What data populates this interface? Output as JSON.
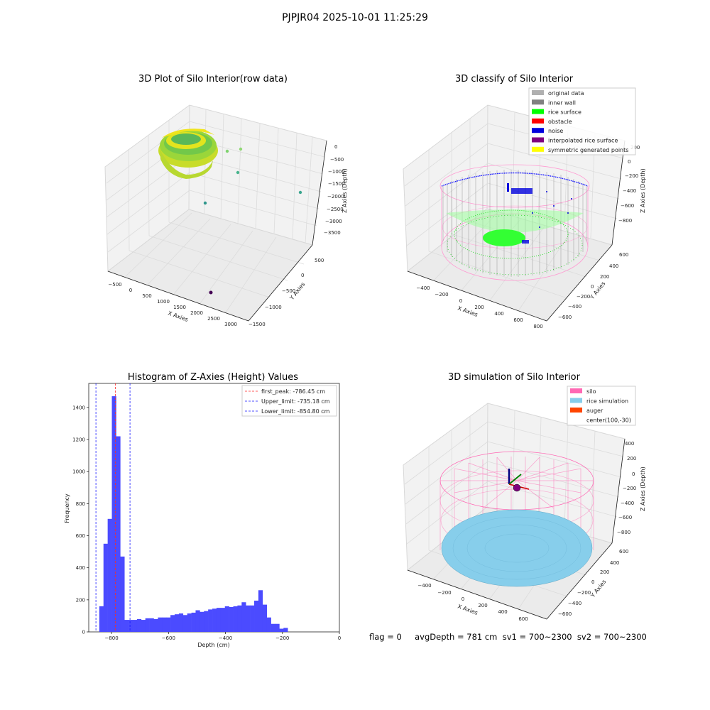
{
  "suptitle": "PJPJR04 2025-10-01 11:25:29",
  "status_text": "flag = 0     avgDepth = 781 cm  sv1 = 700~2300  sv2 = 700~2300",
  "colors": {
    "hist_bar": "#4b4bff",
    "peak_line": "#ff2a2a",
    "limit_line": "#1a1aff",
    "original_data": "#b0b0b0",
    "inner_wall": "#808080",
    "rice_surface": "#00ff00",
    "obstacle": "#ff0000",
    "noise": "#0000dd",
    "interpolated": "#7f007f",
    "symmetric": "#ffff00",
    "silo": "#ff69b4",
    "rice_sim": "#87ceeb",
    "auger": "#ff4500"
  },
  "plot1": {
    "title": "3D Plot of Silo Interior(row data)",
    "xlabel": "X Axies",
    "ylabel": "Y Axies",
    "zlabel": "Z Axies (Depth)",
    "xticks": [
      "−500",
      "0",
      "500",
      "1000",
      "1500",
      "2000",
      "2500",
      "3000"
    ],
    "yticks": [
      "500",
      "0",
      "−500",
      "−1000",
      "−1500"
    ],
    "zticks": [
      "0",
      "−500",
      "−1000",
      "−1500",
      "−2000",
      "−2500",
      "−3000",
      "−3500"
    ]
  },
  "plot2": {
    "title": "3D classify of Silo Interior",
    "xlabel": "X Axies",
    "ylabel": "Y Axies",
    "zlabel": "Z Axies (Depth)",
    "xticks": [
      "−400",
      "−200",
      "0",
      "200",
      "400",
      "600",
      "800"
    ],
    "yticks": [
      "600",
      "400",
      "200",
      "0",
      "−200",
      "−400",
      "−600"
    ],
    "zticks": [
      "200",
      "0",
      "−200",
      "−400",
      "−600",
      "−800"
    ],
    "legend": [
      {
        "label": "original data",
        "color": "#b0b0b0"
      },
      {
        "label": "inner wall",
        "color": "#808080"
      },
      {
        "label": "rice surface",
        "color": "#00ff00"
      },
      {
        "label": "obstacle",
        "color": "#ff0000"
      },
      {
        "label": "noise",
        "color": "#0000dd"
      },
      {
        "label": "interpolated rice surface",
        "color": "#7f007f"
      },
      {
        "label": "symmetric generated points",
        "color": "#ffff00"
      }
    ]
  },
  "plot4": {
    "title": "3D simulation of Silo Interior",
    "xlabel": "X Axies",
    "ylabel": "Y Axies",
    "zlabel": "Z Axies (Depth)",
    "xticks": [
      "−400",
      "−200",
      "0",
      "200",
      "400",
      "600"
    ],
    "yticks": [
      "600",
      "400",
      "200",
      "0",
      "−200",
      "−400",
      "−600"
    ],
    "zticks": [
      "400",
      "200",
      "0",
      "−200",
      "−400",
      "−600",
      "−800"
    ],
    "legend": [
      {
        "label": "silo",
        "color": "#ff69b4"
      },
      {
        "label": "rice simulation",
        "color": "#87ceeb"
      },
      {
        "label": "auger",
        "color": "#ff4500"
      },
      {
        "label": "center(100,-30)",
        "color": ""
      }
    ]
  },
  "chart_data": [
    {
      "type": "bar",
      "title": "Histogram of Z-Axies (Height) Values",
      "xlabel": "Depth (cm)",
      "ylabel": "Frequency",
      "xlim": [
        -880,
        0
      ],
      "ylim": [
        0,
        1550
      ],
      "xticks": [
        -800,
        -600,
        -400,
        -200,
        0
      ],
      "yticks": [
        0,
        200,
        400,
        600,
        800,
        1000,
        1200,
        1400
      ],
      "bin_width": 14.7,
      "bin_start": -843,
      "values": [
        160,
        550,
        705,
        1470,
        1220,
        470,
        75,
        75,
        75,
        80,
        75,
        85,
        85,
        80,
        90,
        90,
        90,
        105,
        110,
        115,
        105,
        115,
        120,
        135,
        125,
        130,
        140,
        145,
        150,
        150,
        160,
        155,
        160,
        165,
        185,
        165,
        165,
        195,
        260,
        170,
        90,
        50,
        50,
        20,
        25
      ],
      "vlines": [
        {
          "label": "first_peak: -786.45 cm",
          "x": -786.45,
          "color": "#ff2a2a"
        },
        {
          "label": "Upper_limit: -735.18 cm",
          "x": -735.18,
          "color": "#1a1aff"
        },
        {
          "label": "Lower_limit: -854.80 cm",
          "x": -854.8,
          "color": "#1a1aff"
        }
      ],
      "legend_position": "top-right"
    }
  ]
}
